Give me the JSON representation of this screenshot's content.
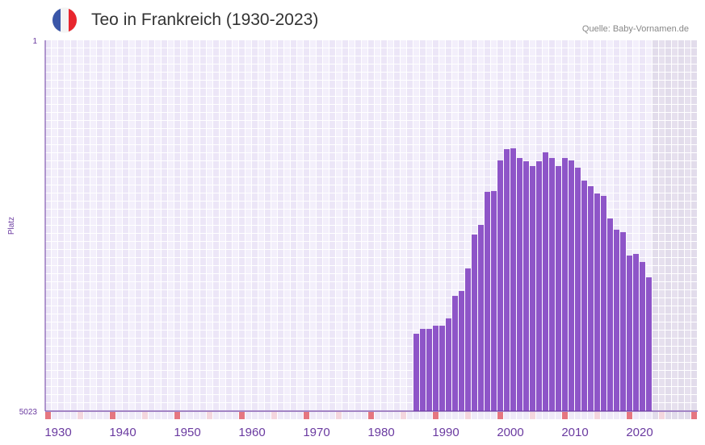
{
  "header": {
    "title": "Teo in Frankreich (1930-2023)",
    "source": "Quelle: Baby-Vornamen.de"
  },
  "colors": {
    "bar": "#8e55c8",
    "axis": "#6a3aa0",
    "marker": "#e57680",
    "flag_blue": "#3a56a8",
    "flag_red": "#e8262e"
  },
  "chart_data": {
    "type": "bar",
    "title": "Teo in Frankreich (1930-2023)",
    "xlabel": "",
    "ylabel": "Platz",
    "ylim": [
      5023,
      1
    ],
    "y_ticks": [
      "1",
      "5023"
    ],
    "x_ticks": [
      "1930",
      "1940",
      "1950",
      "1960",
      "1970",
      "1980",
      "1990",
      "2000",
      "2010",
      "2020"
    ],
    "x_range": [
      1929,
      2029
    ],
    "categories": [
      1986,
      1987,
      1988,
      1989,
      1990,
      1991,
      1992,
      1993,
      1994,
      1995,
      1996,
      1997,
      1998,
      1999,
      2000,
      2001,
      2002,
      2003,
      2004,
      2005,
      2006,
      2007,
      2008,
      2009,
      2010,
      2011,
      2012,
      2013,
      2014,
      2015,
      2016,
      2017,
      2018,
      2019,
      2020,
      2021,
      2022
    ],
    "values": [
      3975,
      3909,
      3909,
      3866,
      3866,
      3767,
      3462,
      3396,
      3090,
      2632,
      2501,
      2053,
      2042,
      1628,
      1475,
      1464,
      1595,
      1639,
      1704,
      1639,
      1518,
      1595,
      1704,
      1595,
      1628,
      1726,
      1901,
      1977,
      2075,
      2108,
      2414,
      2566,
      2599,
      2916,
      2894,
      3003,
      3211
    ]
  }
}
